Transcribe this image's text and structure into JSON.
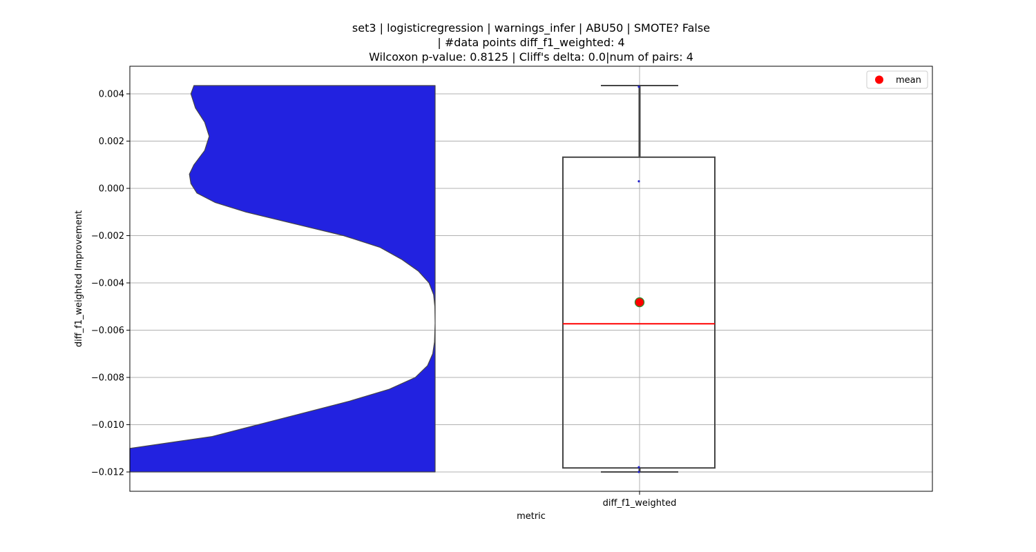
{
  "chart_data": {
    "type": "violin-box",
    "title_lines": [
      "set3 | logisticregression | warnings_infer | ABU50 | SMOTE? False",
      "| #data points diff_f1_weighted: 4",
      "Wilcoxon p-value: 0.8125 | Cliff's delta: 0.0|num of pairs: 4"
    ],
    "xlabel": "metric",
    "ylabel": "diff_f1_weighted Improvement",
    "categories": [
      "diff_f1_weighted"
    ],
    "yticks": [
      0.004,
      0.002,
      0.0,
      -0.002,
      -0.004,
      -0.006,
      -0.008,
      -0.01,
      -0.012
    ],
    "ytick_labels": [
      "0.004",
      "0.002",
      "0.000",
      "−0.002",
      "−0.004",
      "−0.006",
      "−0.008",
      "−0.010",
      "−0.012"
    ],
    "ylim": [
      -0.0128,
      0.0052
    ],
    "grid": true,
    "legend": {
      "position": "top-right",
      "entries": [
        "mean"
      ]
    },
    "points": [
      0.0043,
      0.0003,
      -0.0118,
      -0.012
    ],
    "box": {
      "q1": -0.01183,
      "median": -0.00573,
      "q3": 0.00132,
      "whisker_low": -0.012,
      "whisker_high": 0.00435
    },
    "mean": -0.00482,
    "violin_profile": [
      [
        0.00435,
        0.79
      ],
      [
        0.004,
        0.8
      ],
      [
        0.0034,
        0.785
      ],
      [
        0.0028,
        0.755
      ],
      [
        0.0022,
        0.74
      ],
      [
        0.0016,
        0.755
      ],
      [
        0.001,
        0.79
      ],
      [
        0.0006,
        0.805
      ],
      [
        0.0002,
        0.8
      ],
      [
        -0.0002,
        0.78
      ],
      [
        -0.0006,
        0.72
      ],
      [
        -0.001,
        0.62
      ],
      [
        -0.0015,
        0.46
      ],
      [
        -0.002,
        0.3
      ],
      [
        -0.0025,
        0.18
      ],
      [
        -0.003,
        0.11
      ],
      [
        -0.0035,
        0.055
      ],
      [
        -0.004,
        0.02
      ],
      [
        -0.0045,
        0.005
      ],
      [
        -0.005,
        0.001
      ],
      [
        -0.0057,
        0.0
      ],
      [
        -0.0065,
        0.002
      ],
      [
        -0.007,
        0.008
      ],
      [
        -0.0075,
        0.025
      ],
      [
        -0.008,
        0.065
      ],
      [
        -0.0085,
        0.15
      ],
      [
        -0.009,
        0.28
      ],
      [
        -0.0095,
        0.43
      ],
      [
        -0.01,
        0.58
      ],
      [
        -0.0105,
        0.73
      ],
      [
        -0.011,
        1.0
      ],
      [
        -0.012,
        1.0
      ]
    ],
    "colors": {
      "violin_fill": "#2222e0",
      "violin_edge": "#444444",
      "box_edge": "#444444",
      "median_line": "#ff0000",
      "mean_marker": "#ff0000",
      "mean_edge": "#2e8b2e",
      "point_color": "#1f1fcc",
      "grid": "#b0b0b0"
    }
  }
}
